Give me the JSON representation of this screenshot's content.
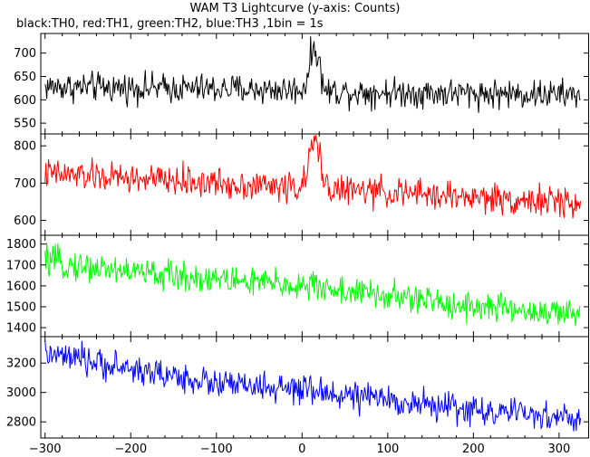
{
  "chart_data": {
    "type": "line",
    "title": "WAM T3 Lightcurve (y-axis: Counts)",
    "subtitle": "black:TH0, red:TH1, green:TH2, blue:TH3 ,1bin = 1s",
    "xlabel": "",
    "xlim": [
      -305,
      335
    ],
    "xticks": [
      -300,
      -200,
      -100,
      0,
      100,
      200,
      300
    ],
    "x": [
      -300,
      -280,
      -260,
      -240,
      -220,
      -200,
      -180,
      -160,
      -140,
      -120,
      -100,
      -80,
      -60,
      -40,
      -20,
      0,
      5,
      10,
      15,
      20,
      25,
      30,
      40,
      60,
      80,
      100,
      120,
      140,
      160,
      180,
      200,
      220,
      240,
      260,
      280,
      300,
      325
    ],
    "series": [
      {
        "name": "TH0",
        "color": "#000000",
        "ylim": [
          527,
          742
        ],
        "yticks": [
          550,
          600,
          650,
          700
        ],
        "noise": 35,
        "values": [
          628,
          628,
          627,
          627,
          626,
          626,
          625,
          625,
          624,
          624,
          623,
          623,
          622,
          622,
          621,
          622,
          640,
          690,
          715,
          680,
          625,
          618,
          618,
          617,
          617,
          616,
          616,
          615,
          615,
          614,
          614,
          613,
          613,
          612,
          612,
          611,
          611
        ]
      },
      {
        "name": "TH1",
        "color": "#ff0000",
        "ylim": [
          560,
          832
        ],
        "yticks": [
          600,
          700,
          800
        ],
        "noise": 45,
        "values": [
          725,
          722,
          720,
          717,
          715,
          712,
          710,
          707,
          705,
          702,
          700,
          697,
          695,
          693,
          690,
          690,
          715,
          790,
          810,
          780,
          720,
          690,
          683,
          680,
          677,
          675,
          672,
          670,
          667,
          665,
          662,
          660,
          657,
          654,
          652,
          649,
          645
        ]
      },
      {
        "name": "TH2",
        "color": "#00ff00",
        "ylim": [
          1357,
          1842
        ],
        "yticks": [
          1400,
          1500,
          1600,
          1700,
          1800
        ],
        "noise": 80,
        "values": [
          1720,
          1705,
          1695,
          1685,
          1680,
          1670,
          1660,
          1650,
          1645,
          1640,
          1635,
          1625,
          1620,
          1610,
          1605,
          1600,
          1598,
          1597,
          1596,
          1595,
          1593,
          1590,
          1580,
          1570,
          1560,
          1550,
          1540,
          1530,
          1520,
          1510,
          1505,
          1495,
          1490,
          1480,
          1475,
          1465,
          1455
        ]
      },
      {
        "name": "TH3",
        "color": "#0000ff",
        "ylim": [
          2690,
          3380
        ],
        "yticks": [
          2800,
          3000,
          3200
        ],
        "noise": 110,
        "values": [
          3260,
          3240,
          3220,
          3200,
          3180,
          3160,
          3140,
          3120,
          3100,
          3080,
          3060,
          3050,
          3040,
          3030,
          3020,
          3010,
          3008,
          3006,
          3004,
          3002,
          3000,
          2998,
          2990,
          2975,
          2960,
          2950,
          2935,
          2920,
          2905,
          2895,
          2880,
          2870,
          2860,
          2850,
          2840,
          2830,
          2815
        ]
      }
    ],
    "grid": false,
    "legend": "none"
  }
}
